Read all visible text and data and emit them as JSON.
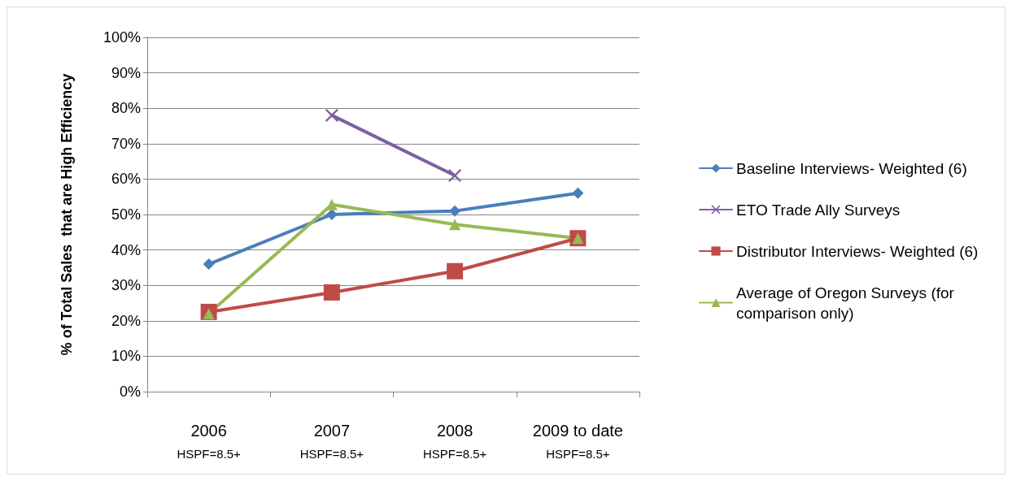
{
  "chart_data": {
    "type": "line",
    "ylabel": "% of Total Sales  that are High Efficiency",
    "categories": [
      "2006\nHSPF=8.5+",
      "2007\nHSPF=8.5+",
      "2008\nHSPF=8.5+",
      "2009 to date\nHSPF=8.5+"
    ],
    "series": [
      {
        "name": "Baseline Interviews- Weighted (6)",
        "color": "#4a7ebb",
        "marker": "diamond",
        "values": [
          36,
          50,
          51,
          56
        ]
      },
      {
        "name": "ETO Trade Ally Surveys",
        "color": "#7d60a0",
        "marker": "cross",
        "values": [
          null,
          78,
          61,
          null
        ]
      },
      {
        "name": "Distributor Interviews- Weighted (6)",
        "color": "#be4b48",
        "marker": "square",
        "values": [
          22.5,
          28,
          34,
          43.3
        ]
      },
      {
        "name": "Average of Oregon Surveys (for comparison only)",
        "color": "#98b954",
        "marker": "triangle",
        "values": [
          22,
          52.8,
          47.2,
          43.3
        ]
      }
    ],
    "ylim": [
      0,
      100
    ],
    "yticks": [
      {
        "value": 0,
        "label": "0%"
      },
      {
        "value": 10,
        "label": "10%"
      },
      {
        "value": 20,
        "label": "20%"
      },
      {
        "value": 30,
        "label": "30%"
      },
      {
        "value": 40,
        "label": "40%"
      },
      {
        "value": 50,
        "label": "50%"
      },
      {
        "value": 60,
        "label": "60%"
      },
      {
        "value": 70,
        "label": "70%"
      },
      {
        "value": 80,
        "label": "80%"
      },
      {
        "value": 90,
        "label": "90%"
      },
      {
        "value": 100,
        "label": "100%"
      }
    ],
    "grid": "y",
    "legend": "right",
    "line_style": "solid"
  }
}
